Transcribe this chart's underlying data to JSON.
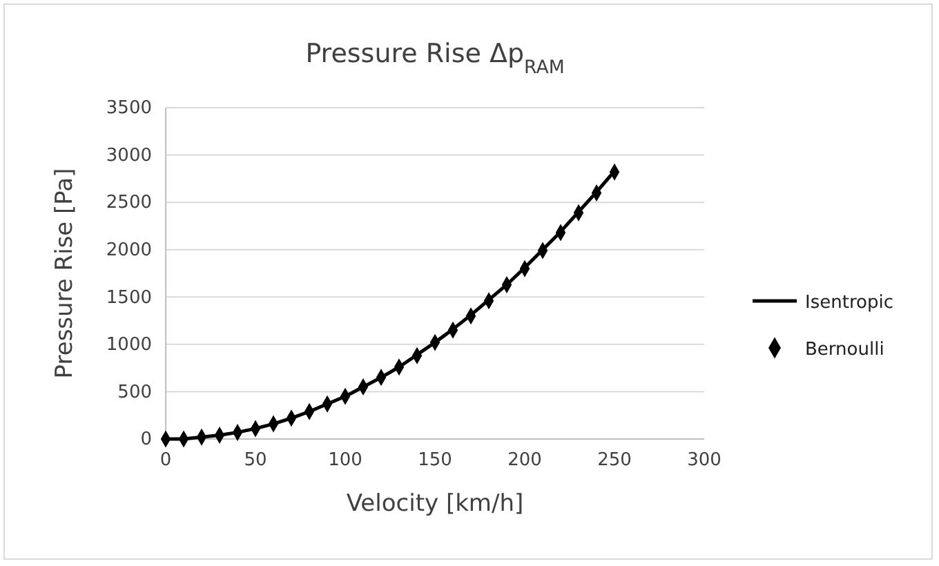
{
  "chart_data": {
    "type": "line",
    "title": "Pressure Rise Δp$_{RAM}$",
    "xlabel": "Velocity [km/h]",
    "ylabel": "Pressure Rise [Pa]",
    "x": [
      0,
      10,
      20,
      30,
      40,
      50,
      60,
      70,
      80,
      90,
      100,
      110,
      120,
      130,
      140,
      150,
      160,
      170,
      180,
      190,
      200,
      210,
      220,
      230,
      240,
      250
    ],
    "series": [
      {
        "name": "Isentropic",
        "color": "#000000",
        "marker": "none",
        "values": [
          0,
          0,
          20,
          40,
          70,
          110,
          160,
          220,
          290,
          370,
          450,
          550,
          650,
          760,
          890,
          1020,
          1160,
          1310,
          1470,
          1630,
          1810,
          2000,
          2190,
          2400,
          2610,
          2830
        ]
      },
      {
        "name": "Bernoulli",
        "type": "scatter",
        "color": "#000000",
        "marker": "diamond",
        "values": [
          0,
          0,
          20,
          40,
          70,
          110,
          160,
          220,
          290,
          370,
          450,
          550,
          650,
          760,
          880,
          1020,
          1150,
          1300,
          1460,
          1630,
          1800,
          1990,
          2180,
          2390,
          2600,
          2820
        ]
      }
    ],
    "xlim": [
      0,
      300
    ],
    "xticks": [
      0,
      50,
      100,
      150,
      200,
      250,
      300
    ],
    "ylim": [
      0,
      3500
    ],
    "yticks": [
      0,
      500,
      1000,
      1500,
      2000,
      2500,
      3000,
      3500
    ],
    "grid": "y",
    "legend": "right"
  }
}
